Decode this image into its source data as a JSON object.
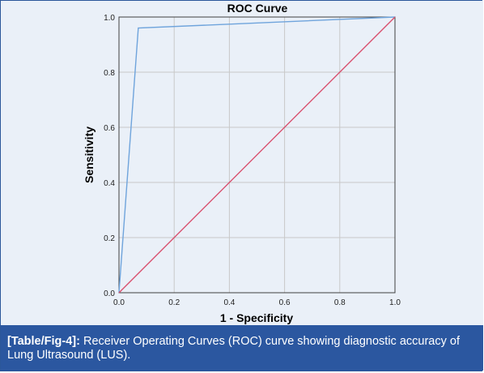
{
  "figure": {
    "caption_label": "[Table/Fig-4]:",
    "caption_text": " Receiver Operating Curves (ROC) curve showing diagnostic accuracy of Lung Ultrasound (LUS)."
  },
  "colors": {
    "background": "#eaf0f8",
    "caption_bg": "#2b57a0",
    "roc_line": "#6fa4dc",
    "reference_line": "#d9506e",
    "grid": "#c8c8c8",
    "axis": "#404040"
  },
  "chart_data": {
    "type": "line",
    "title": "ROC Curve",
    "xlabel": "1 - Specificity",
    "ylabel": "Sensitivity",
    "xlim": [
      0,
      1
    ],
    "ylim": [
      0,
      1
    ],
    "xticks": [
      "0.0",
      "0.2",
      "0.4",
      "0.6",
      "0.8",
      "1.0"
    ],
    "yticks": [
      "0.0",
      "0.2",
      "0.4",
      "0.6",
      "0.8",
      "1.0"
    ],
    "grid": true,
    "series": [
      {
        "x": [
          0,
          0.07,
          1.0
        ],
        "y": [
          0,
          0.96,
          1.0
        ]
      },
      {
        "x": [
          0,
          1
        ],
        "y": [
          0,
          1
        ]
      }
    ]
  }
}
